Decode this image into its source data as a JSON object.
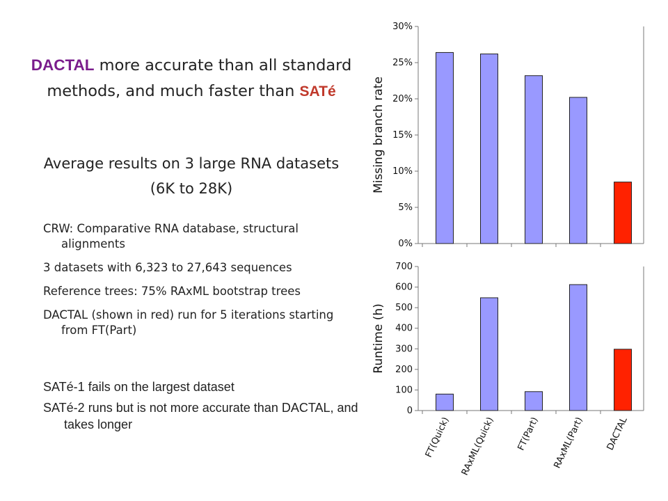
{
  "text": {
    "title_prefix": "DACTAL",
    "title_middle": " more accurate than all standard methods, and much faster than ",
    "title_sate": "SATé",
    "subtitle": "Average results on 3 large RNA datasets (6K to 28K)",
    "bullets": [
      "CRW: Comparative RNA database, structural alignments",
      "3 datasets with 6,323 to 27,643 sequences",
      "Reference trees: 75% RAxML bootstrap trees",
      "DACTAL (shown in red) run for 5 iterations starting from FT(Part)"
    ],
    "notes": [
      "SATé-1 fails on the largest dataset",
      "SATé-2 runs but is not more accurate than DACTAL, and takes longer"
    ]
  },
  "colors": {
    "default_bar": "#9999ff",
    "highlight_bar": "#ff2200",
    "accent_title": "#7a1d8c"
  },
  "chart_data": [
    {
      "type": "bar",
      "ylabel": "Missing branch rate",
      "ylim": [
        0,
        30
      ],
      "yticks": [
        0,
        5,
        10,
        15,
        20,
        25,
        30
      ],
      "ytick_labels": [
        "0%",
        "5%",
        "10%",
        "15%",
        "20%",
        "25%",
        "30%"
      ],
      "categories": [
        "FT(Quick)",
        "RAxML(Quick)",
        "FT(Part)",
        "RAxML(Part)",
        "DACTAL"
      ],
      "values": [
        26.4,
        26.2,
        23.2,
        20.2,
        8.5
      ],
      "highlight": "DACTAL",
      "grid": false
    },
    {
      "type": "bar",
      "ylabel": "Runtime (h)",
      "ylim": [
        0,
        700
      ],
      "yticks": [
        0,
        100,
        200,
        300,
        400,
        500,
        600,
        700
      ],
      "ytick_labels": [
        "0",
        "100",
        "200",
        "300",
        "400",
        "500",
        "600",
        "700"
      ],
      "categories": [
        "FT(Quick)",
        "RAxML(Quick)",
        "FT(Part)",
        "RAxML(Part)",
        "DACTAL"
      ],
      "values": [
        80,
        548,
        92,
        612,
        298
      ],
      "highlight": "DACTAL",
      "grid": false
    }
  ]
}
